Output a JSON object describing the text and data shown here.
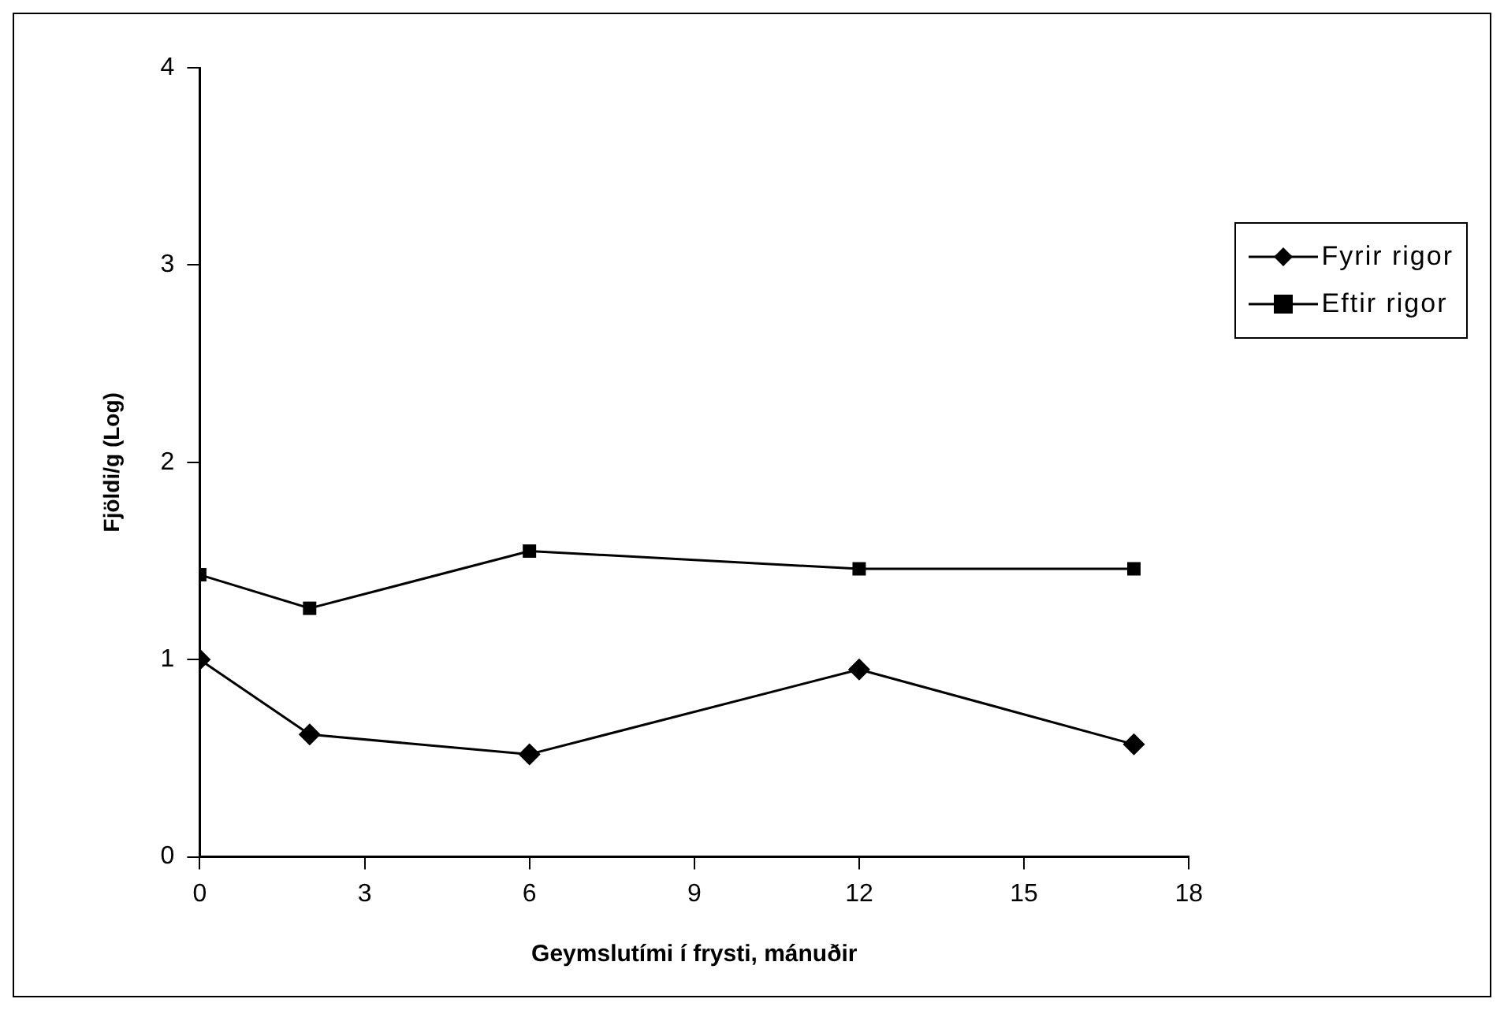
{
  "chart_data": {
    "type": "line",
    "xlabel": "Geymslutími í frysti, mánuðir",
    "ylabel": "Fjöldi/g (Log)",
    "xlim": [
      0,
      18
    ],
    "xticks": [
      0,
      3,
      6,
      9,
      12,
      15,
      18
    ],
    "ylim": [
      0,
      4
    ],
    "yticks": [
      0,
      1,
      2,
      3,
      4
    ],
    "grid": false,
    "legend": "right",
    "line_style": "solid",
    "x": [
      0,
      2,
      6,
      12,
      17
    ],
    "series": [
      {
        "name": "Fyrir rigor",
        "color": "#000000",
        "marker": "diamond",
        "values": [
          1.0,
          0.62,
          0.52,
          0.95,
          0.57
        ]
      },
      {
        "name": "Eftir rigor",
        "color": "#000000",
        "marker": "square",
        "values": [
          1.43,
          1.26,
          1.55,
          1.46,
          1.46
        ]
      }
    ]
  }
}
